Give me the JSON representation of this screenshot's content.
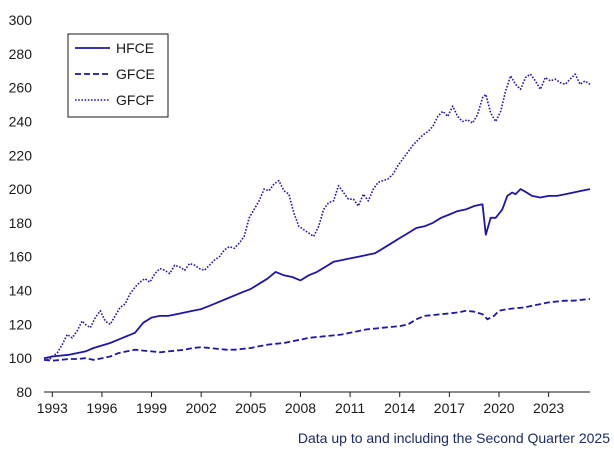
{
  "chart_data": {
    "type": "line",
    "title": "",
    "xlabel": "",
    "ylabel": "",
    "ylim": [
      80,
      300
    ],
    "xlim": [
      1992.5,
      2025.5
    ],
    "y_ticks": [
      80,
      100,
      120,
      140,
      160,
      180,
      200,
      220,
      240,
      260,
      280,
      300
    ],
    "x_tick_values": [
      1993,
      1996,
      1999,
      2002,
      2005,
      2008,
      2011,
      2014,
      2017,
      2020,
      2023
    ],
    "x_tick_labels": [
      "1993",
      "1996",
      "1999",
      "2002",
      "2005",
      "2008",
      "2011",
      "2014",
      "2017",
      "2020",
      "2023"
    ],
    "grid": false,
    "legend_position": "top-left",
    "line_color": "#1f15a8",
    "series": [
      {
        "name": "HFCE",
        "style": "solid",
        "points": [
          [
            1992.5,
            100
          ],
          [
            1993.0,
            101
          ],
          [
            1993.5,
            101.5
          ],
          [
            1994.0,
            102
          ],
          [
            1994.5,
            103
          ],
          [
            1995.0,
            104
          ],
          [
            1995.5,
            106
          ],
          [
            1996.0,
            107.5
          ],
          [
            1996.5,
            109
          ],
          [
            1997.0,
            111
          ],
          [
            1997.5,
            113
          ],
          [
            1998.0,
            115
          ],
          [
            1998.5,
            121
          ],
          [
            1999.0,
            124
          ],
          [
            1999.5,
            125
          ],
          [
            2000.0,
            125
          ],
          [
            2000.5,
            126
          ],
          [
            2001.0,
            127
          ],
          [
            2001.5,
            128
          ],
          [
            2002.0,
            129
          ],
          [
            2002.5,
            131
          ],
          [
            2003.0,
            133
          ],
          [
            2003.5,
            135
          ],
          [
            2004.0,
            137
          ],
          [
            2004.5,
            139
          ],
          [
            2005.0,
            141
          ],
          [
            2005.5,
            144
          ],
          [
            2006.0,
            147
          ],
          [
            2006.5,
            151
          ],
          [
            2007.0,
            149
          ],
          [
            2007.5,
            148
          ],
          [
            2008.0,
            146
          ],
          [
            2008.5,
            149
          ],
          [
            2009.0,
            151
          ],
          [
            2009.5,
            154
          ],
          [
            2010.0,
            157
          ],
          [
            2010.5,
            158
          ],
          [
            2011.0,
            159
          ],
          [
            2011.5,
            160
          ],
          [
            2012.0,
            161
          ],
          [
            2012.5,
            162
          ],
          [
            2013.0,
            165
          ],
          [
            2013.5,
            168
          ],
          [
            2014.0,
            171
          ],
          [
            2014.5,
            174
          ],
          [
            2015.0,
            177
          ],
          [
            2015.5,
            178
          ],
          [
            2016.0,
            180
          ],
          [
            2016.5,
            183
          ],
          [
            2017.0,
            185
          ],
          [
            2017.5,
            187
          ],
          [
            2018.0,
            188
          ],
          [
            2018.5,
            190
          ],
          [
            2019.0,
            191
          ],
          [
            2019.2,
            173
          ],
          [
            2019.5,
            183
          ],
          [
            2019.8,
            183
          ],
          [
            2020.2,
            188
          ],
          [
            2020.5,
            196
          ],
          [
            2020.8,
            198
          ],
          [
            2021.0,
            197
          ],
          [
            2021.3,
            200
          ],
          [
            2021.5,
            199
          ],
          [
            2022.0,
            196
          ],
          [
            2022.5,
            195
          ],
          [
            2023.0,
            196
          ],
          [
            2023.5,
            196
          ],
          [
            2024.0,
            197
          ],
          [
            2024.5,
            198
          ],
          [
            2025.0,
            199
          ],
          [
            2025.5,
            200
          ]
        ]
      },
      {
        "name": "GFCE",
        "style": "dashed",
        "points": [
          [
            1992.5,
            99
          ],
          [
            1993.0,
            98.5
          ],
          [
            1993.5,
            99
          ],
          [
            1994.0,
            99.5
          ],
          [
            1994.5,
            99.5
          ],
          [
            1995.0,
            100
          ],
          [
            1995.5,
            99
          ],
          [
            1996.0,
            100
          ],
          [
            1996.5,
            101
          ],
          [
            1997.0,
            103
          ],
          [
            1997.5,
            104
          ],
          [
            1998.0,
            105
          ],
          [
            1998.5,
            104.5
          ],
          [
            1999.0,
            104
          ],
          [
            1999.5,
            103.5
          ],
          [
            2000.0,
            104
          ],
          [
            2000.5,
            104.5
          ],
          [
            2001.0,
            105
          ],
          [
            2001.5,
            106
          ],
          [
            2002.0,
            106.5
          ],
          [
            2002.5,
            106
          ],
          [
            2003.0,
            105.5
          ],
          [
            2003.5,
            105
          ],
          [
            2004.0,
            105
          ],
          [
            2004.5,
            105.5
          ],
          [
            2005.0,
            106
          ],
          [
            2005.5,
            107
          ],
          [
            2006.0,
            108
          ],
          [
            2006.5,
            108.5
          ],
          [
            2007.0,
            109
          ],
          [
            2007.5,
            110
          ],
          [
            2008.0,
            111
          ],
          [
            2008.5,
            112
          ],
          [
            2009.0,
            112.5
          ],
          [
            2009.5,
            113
          ],
          [
            2010.0,
            113.5
          ],
          [
            2010.5,
            114
          ],
          [
            2011.0,
            115
          ],
          [
            2011.5,
            116
          ],
          [
            2012.0,
            117
          ],
          [
            2012.5,
            117.5
          ],
          [
            2013.0,
            118
          ],
          [
            2013.5,
            118.5
          ],
          [
            2014.0,
            119
          ],
          [
            2014.5,
            120
          ],
          [
            2015.0,
            123
          ],
          [
            2015.5,
            125
          ],
          [
            2016.0,
            125.5
          ],
          [
            2016.5,
            126
          ],
          [
            2017.0,
            126.5
          ],
          [
            2017.5,
            127
          ],
          [
            2018.0,
            128
          ],
          [
            2018.5,
            127.5
          ],
          [
            2019.0,
            126
          ],
          [
            2019.3,
            123
          ],
          [
            2019.7,
            125
          ],
          [
            2020.0,
            128
          ],
          [
            2020.5,
            129
          ],
          [
            2021.0,
            129.5
          ],
          [
            2021.5,
            130
          ],
          [
            2022.0,
            131
          ],
          [
            2022.5,
            132
          ],
          [
            2023.0,
            133
          ],
          [
            2023.5,
            133.5
          ],
          [
            2024.0,
            134
          ],
          [
            2024.5,
            134
          ],
          [
            2025.0,
            134.5
          ],
          [
            2025.5,
            135
          ]
        ]
      },
      {
        "name": "GFCF",
        "style": "dotted",
        "points": [
          [
            1992.5,
            100
          ],
          [
            1992.8,
            99
          ],
          [
            1993.0,
            101
          ],
          [
            1993.3,
            103
          ],
          [
            1993.6,
            108
          ],
          [
            1993.9,
            114
          ],
          [
            1994.2,
            112
          ],
          [
            1994.5,
            116
          ],
          [
            1994.8,
            122
          ],
          [
            1995.0,
            120
          ],
          [
            1995.3,
            118
          ],
          [
            1995.6,
            124
          ],
          [
            1995.9,
            128
          ],
          [
            1996.2,
            122
          ],
          [
            1996.5,
            120
          ],
          [
            1996.8,
            125
          ],
          [
            1997.1,
            130
          ],
          [
            1997.4,
            132
          ],
          [
            1997.7,
            138
          ],
          [
            1998.0,
            142
          ],
          [
            1998.3,
            145
          ],
          [
            1998.6,
            147
          ],
          [
            1998.9,
            145
          ],
          [
            1999.2,
            150
          ],
          [
            1999.5,
            153
          ],
          [
            1999.8,
            152
          ],
          [
            2000.1,
            150
          ],
          [
            2000.4,
            155
          ],
          [
            2000.7,
            154
          ],
          [
            2001.0,
            152
          ],
          [
            2001.3,
            156
          ],
          [
            2001.6,
            155
          ],
          [
            2001.9,
            153
          ],
          [
            2002.2,
            152
          ],
          [
            2002.5,
            155
          ],
          [
            2002.8,
            158
          ],
          [
            2003.1,
            160
          ],
          [
            2003.4,
            164
          ],
          [
            2003.7,
            166
          ],
          [
            2004.0,
            165
          ],
          [
            2004.3,
            168
          ],
          [
            2004.6,
            172
          ],
          [
            2004.9,
            183
          ],
          [
            2005.2,
            188
          ],
          [
            2005.5,
            193
          ],
          [
            2005.8,
            200
          ],
          [
            2006.1,
            199
          ],
          [
            2006.4,
            203
          ],
          [
            2006.7,
            205
          ],
          [
            2007.0,
            199
          ],
          [
            2007.3,
            197
          ],
          [
            2007.6,
            186
          ],
          [
            2007.9,
            178
          ],
          [
            2008.2,
            176
          ],
          [
            2008.5,
            174
          ],
          [
            2008.8,
            172
          ],
          [
            2009.1,
            178
          ],
          [
            2009.4,
            188
          ],
          [
            2009.7,
            192
          ],
          [
            2010.0,
            193
          ],
          [
            2010.3,
            202
          ],
          [
            2010.6,
            198
          ],
          [
            2010.9,
            194
          ],
          [
            2011.2,
            194
          ],
          [
            2011.5,
            190
          ],
          [
            2011.8,
            197
          ],
          [
            2012.1,
            193
          ],
          [
            2012.4,
            200
          ],
          [
            2012.7,
            204
          ],
          [
            2013.0,
            205
          ],
          [
            2013.3,
            206
          ],
          [
            2013.6,
            209
          ],
          [
            2013.9,
            214
          ],
          [
            2014.2,
            218
          ],
          [
            2014.5,
            222
          ],
          [
            2014.8,
            226
          ],
          [
            2015.1,
            229
          ],
          [
            2015.4,
            232
          ],
          [
            2015.7,
            234
          ],
          [
            2016.0,
            237
          ],
          [
            2016.3,
            243
          ],
          [
            2016.6,
            246
          ],
          [
            2016.9,
            243
          ],
          [
            2017.2,
            249
          ],
          [
            2017.5,
            243
          ],
          [
            2017.8,
            240
          ],
          [
            2018.1,
            241
          ],
          [
            2018.4,
            239
          ],
          [
            2018.7,
            244
          ],
          [
            2019.0,
            254
          ],
          [
            2019.2,
            256
          ],
          [
            2019.5,
            245
          ],
          [
            2019.8,
            240
          ],
          [
            2020.1,
            246
          ],
          [
            2020.4,
            258
          ],
          [
            2020.7,
            267
          ],
          [
            2021.0,
            262
          ],
          [
            2021.3,
            259
          ],
          [
            2021.6,
            266
          ],
          [
            2021.9,
            268
          ],
          [
            2022.2,
            264
          ],
          [
            2022.5,
            259
          ],
          [
            2022.8,
            266
          ],
          [
            2023.1,
            264
          ],
          [
            2023.4,
            265
          ],
          [
            2023.7,
            263
          ],
          [
            2024.0,
            262
          ],
          [
            2024.3,
            265
          ],
          [
            2024.6,
            268
          ],
          [
            2024.9,
            262
          ],
          [
            2025.2,
            264
          ],
          [
            2025.5,
            262
          ]
        ]
      }
    ]
  },
  "footnote": "Data up to and including the Second Quarter 2025"
}
